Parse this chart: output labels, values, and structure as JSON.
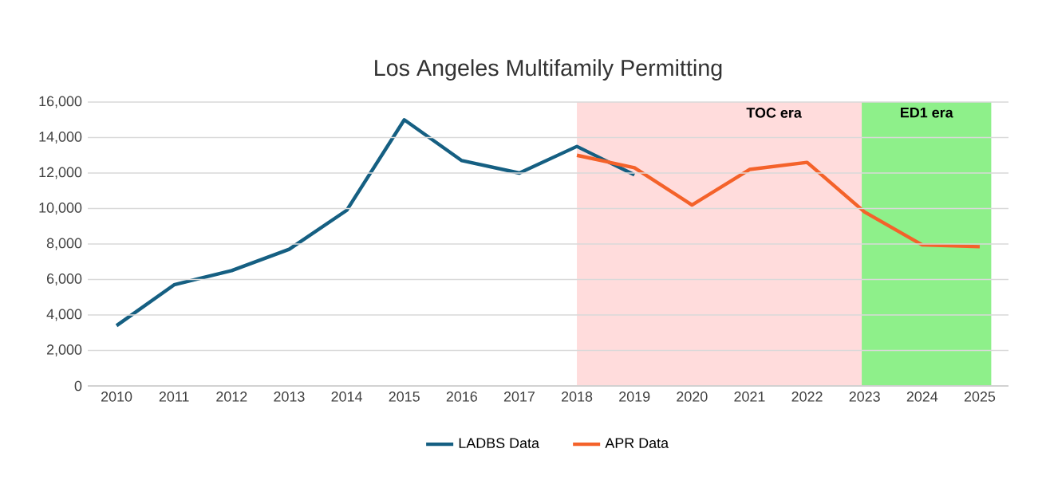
{
  "chart_data": {
    "type": "line",
    "title": "Los Angeles Multifamily Permitting",
    "xlim": [
      2009.5,
      2025.5
    ],
    "xticks": [
      2010,
      2011,
      2012,
      2013,
      2014,
      2015,
      2016,
      2017,
      2018,
      2019,
      2020,
      2021,
      2022,
      2023,
      2024,
      2025
    ],
    "ylim": [
      0,
      16000
    ],
    "yticks": [
      0,
      {
        "value": 2000,
        "label": "2,000"
      },
      {
        "value": 4000,
        "label": "4,000"
      },
      {
        "value": 6000,
        "label": "6,000"
      },
      {
        "value": 8000,
        "label": "8,000"
      },
      {
        "value": 10000,
        "label": "10,000"
      },
      {
        "value": 12000,
        "label": "12,000"
      },
      {
        "value": 14000,
        "label": "14,000"
      },
      {
        "value": 16000,
        "label": "16,000"
      }
    ],
    "grid": "y",
    "legend": "bottom",
    "marker": "none",
    "line_style": "solid",
    "bands": [
      {
        "axis": "x",
        "from": 2018,
        "to": 2024.85,
        "label": "TOC era",
        "color": "#ffdcdc"
      },
      {
        "axis": "x",
        "from": 2022.95,
        "to": 2025.2,
        "label": "ED1 era",
        "color": "#8ef08a"
      }
    ],
    "series": [
      {
        "name": "LADBS Data",
        "color": "#155f82",
        "x": [
          2010,
          2011,
          2012,
          2013,
          2014,
          2015,
          2016,
          2017,
          2018,
          2019
        ],
        "values": [
          3400,
          5700,
          6500,
          7700,
          9900,
          15000,
          12700,
          12000,
          13500,
          11900
        ]
      },
      {
        "name": "APR Data",
        "color": "#f4622a",
        "x": [
          2018,
          2019,
          2020,
          2021,
          2022,
          2023,
          2024,
          2025
        ],
        "values": [
          13000,
          12300,
          10200,
          12200,
          12600,
          9800,
          7950,
          7850
        ]
      }
    ]
  }
}
